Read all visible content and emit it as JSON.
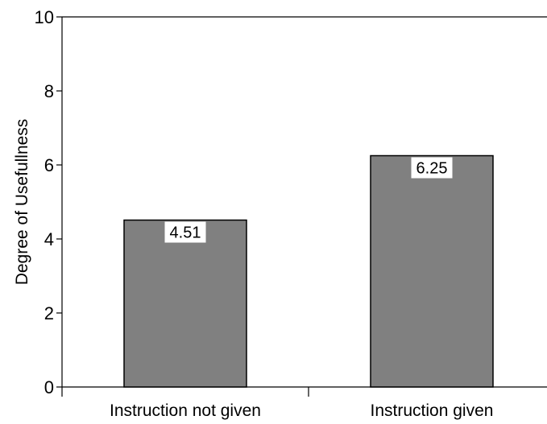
{
  "chart_data": {
    "type": "bar",
    "title": "",
    "xlabel": "",
    "ylabel": "Degree of Usefullness",
    "categories": [
      "Instruction not given",
      "Instruction given"
    ],
    "values": [
      4.51,
      6.25
    ],
    "data_labels": [
      "4.51",
      "6.25"
    ],
    "ylim": [
      0,
      10
    ],
    "yticks": [
      0,
      2,
      4,
      6,
      8,
      10
    ],
    "ytick_labels": [
      "0",
      "2",
      "4",
      "6",
      "8",
      "10"
    ],
    "grid": false,
    "legend": "none",
    "bar_color": "#808080",
    "bar_edge_color": "#000000"
  }
}
